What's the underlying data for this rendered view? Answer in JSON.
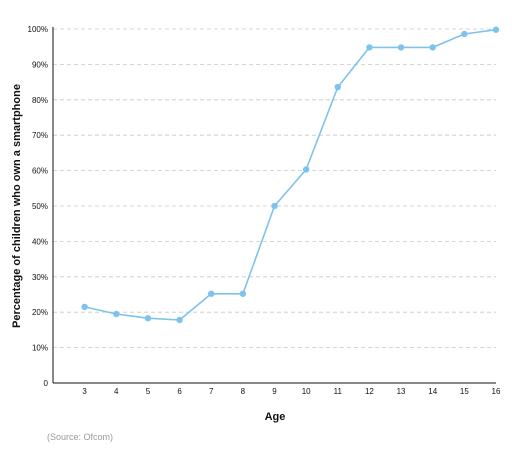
{
  "chart_data": {
    "type": "line",
    "xlabel": "Age",
    "ylabel": "Percentage of children who own a smartphone",
    "source": "(Source: Ofcom)",
    "x": [
      3,
      4,
      5,
      6,
      7,
      8,
      9,
      10,
      11,
      12,
      13,
      14,
      15,
      16
    ],
    "series": [
      {
        "values": [
          21.5,
          19.5,
          18.3,
          17.8,
          25.2,
          25.2,
          50,
          60.3,
          83.6,
          94.8,
          94.8,
          94.8,
          98.6,
          99.8
        ]
      }
    ],
    "x_tick_labels": [
      "3",
      "4",
      "5",
      "6",
      "7",
      "8",
      "9",
      "10",
      "11",
      "12",
      "13",
      "14",
      "15",
      "16"
    ],
    "y_tick_labels": [
      "0",
      "10%",
      "20%",
      "30%",
      "40%",
      "50%",
      "60%",
      "70%",
      "80%",
      "90%",
      "100%"
    ],
    "ylim": [
      0,
      100
    ],
    "xlim": [
      2,
      16
    ],
    "grid": true,
    "colors": {
      "line": "#7ec3ec",
      "marker": "#7ec3ec",
      "grid": "#c8c8c8",
      "axis": "#111111"
    }
  }
}
